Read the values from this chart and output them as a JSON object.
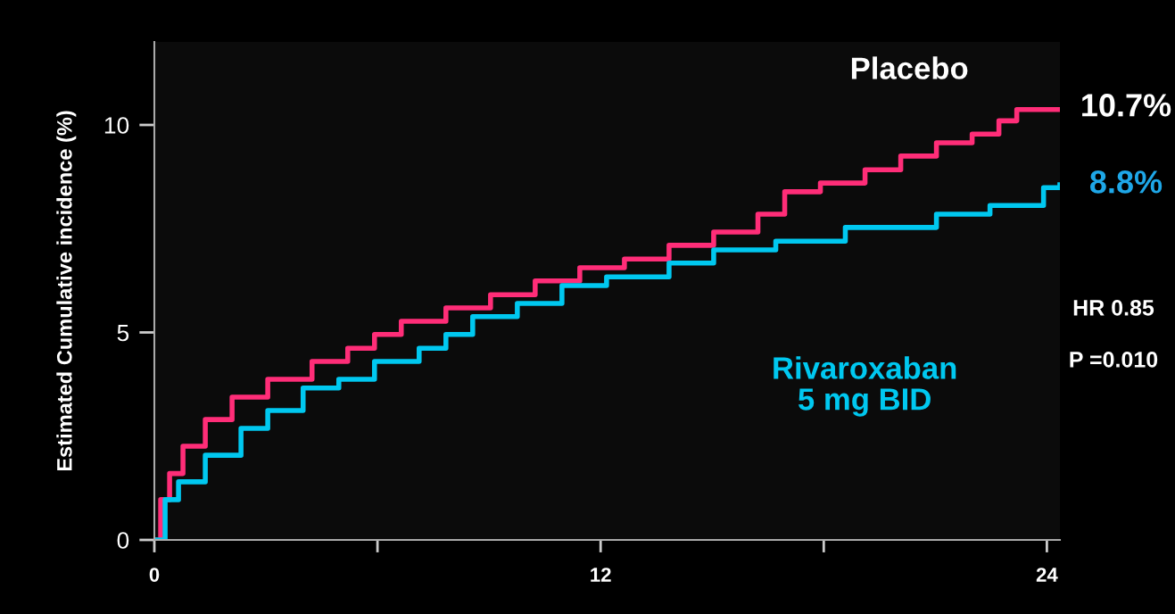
{
  "chart_data": {
    "type": "step",
    "ylabel": "Estimated Cumulative incidence (%)",
    "xlim": [
      0,
      24.35
    ],
    "ylim": [
      0,
      12
    ],
    "xticks": [
      0,
      {
        "value": 6,
        "label": null
      },
      12,
      {
        "value": 18,
        "label": null
      },
      24
    ],
    "yticks": [
      0,
      5,
      10
    ],
    "grid": false,
    "legend": false,
    "series": [
      {
        "name": "Placebo",
        "color": "#ff2d78",
        "x": [
          0,
          0.17,
          0.41,
          0.77,
          1.37,
          2.09,
          3.05,
          4.24,
          5.2,
          5.92,
          6.64,
          7.84,
          9.04,
          10.24,
          11.44,
          12.64,
          13.84,
          15.04,
          16.23,
          16.95,
          17.91,
          19.11,
          20.07,
          21.03,
          21.99,
          22.71,
          23.19,
          24.35
        ],
        "values": [
          0,
          0.97,
          1.6,
          2.26,
          2.9,
          3.44,
          3.87,
          4.3,
          4.62,
          4.95,
          5.27,
          5.59,
          5.91,
          6.24,
          6.56,
          6.77,
          7.1,
          7.42,
          7.85,
          8.39,
          8.6,
          8.92,
          9.25,
          9.57,
          9.78,
          10.1,
          10.37,
          10.37
        ]
      },
      {
        "name": "Rivaroxaban\n5 mg BID",
        "color": "#00c8f0",
        "x": [
          0.05,
          0.29,
          0.65,
          1.37,
          2.33,
          3.05,
          4.0,
          4.96,
          5.92,
          7.12,
          7.84,
          8.56,
          9.76,
          10.96,
          12.16,
          13.84,
          15.04,
          16.71,
          18.58,
          21.03,
          22.47,
          23.91,
          24.35
        ],
        "values": [
          0,
          0.97,
          1.4,
          2.04,
          2.69,
          3.12,
          3.66,
          3.87,
          4.3,
          4.62,
          4.95,
          5.38,
          5.7,
          6.13,
          6.34,
          6.67,
          6.99,
          7.2,
          7.53,
          7.85,
          8.06,
          8.49,
          8.56
        ]
      }
    ],
    "annotations": [
      "10.7%",
      "8.8%",
      "HR 0.85",
      "P =0.010"
    ]
  }
}
